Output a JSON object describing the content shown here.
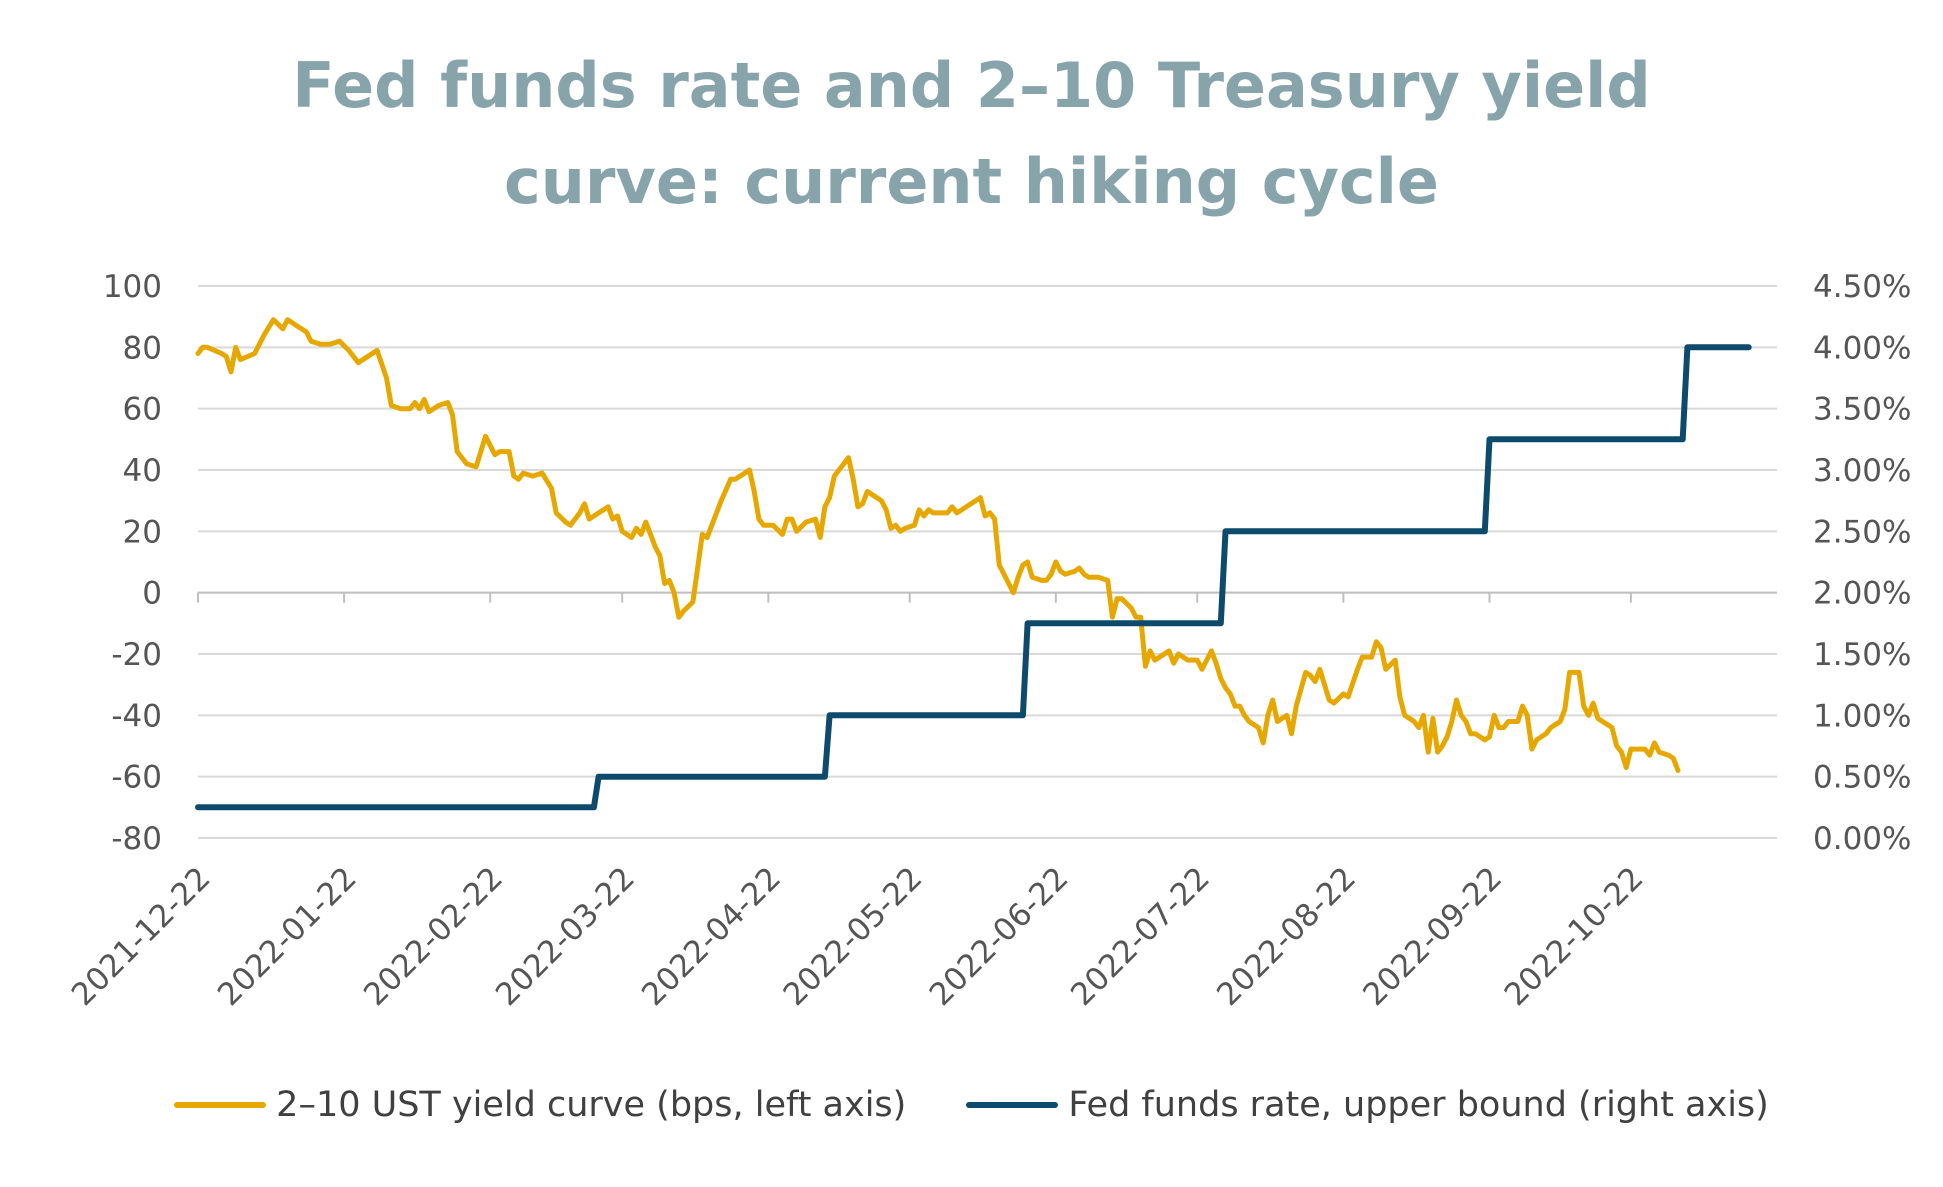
{
  "chart_data": {
    "type": "line",
    "title_lines": [
      "Fed funds rate and 2–10 Treasury yield",
      "curve: current hiking cycle"
    ],
    "x_ticks": [
      "2021-12-22",
      "2022-01-22",
      "2022-02-22",
      "2022-03-22",
      "2022-04-22",
      "2022-05-22",
      "2022-06-22",
      "2022-07-22",
      "2022-08-22",
      "2022-09-22",
      "2022-10-22"
    ],
    "x_range": [
      "2021-12-22",
      "2022-11-22"
    ],
    "y_left": {
      "ylim": [
        -80,
        100
      ],
      "ticks": [
        100,
        80,
        60,
        40,
        20,
        0,
        -20,
        -40,
        -60,
        -80
      ],
      "tick_labels": [
        "100",
        "80",
        "60",
        "40",
        "20",
        "0",
        "-20",
        "-40",
        "-60",
        "-80"
      ]
    },
    "y_right": {
      "ylim": [
        0,
        4.5
      ],
      "ticks": [
        4.5,
        4.0,
        3.5,
        3.0,
        2.5,
        2.0,
        1.5,
        1.0,
        0.5,
        0.0
      ],
      "tick_labels": [
        "4.50%",
        "4.00%",
        "3.50%",
        "3.00%",
        "2.50%",
        "2.00%",
        "1.50%",
        "1.00%",
        "0.50%",
        "0.00%"
      ]
    },
    "grid": true,
    "legend_position": "bottom",
    "series": [
      {
        "name": "2–10 UST yield curve (bps, left axis)",
        "axis": "left",
        "color": "#E6A800",
        "points": [
          [
            "2021-12-22",
            78
          ],
          [
            "2021-12-23",
            80
          ],
          [
            "2021-12-24",
            80
          ],
          [
            "2021-12-27",
            78
          ],
          [
            "2021-12-28",
            77
          ],
          [
            "2021-12-29",
            72
          ],
          [
            "2021-12-30",
            80
          ],
          [
            "2021-12-31",
            76
          ],
          [
            "2022-01-03",
            78
          ],
          [
            "2022-01-05",
            84
          ],
          [
            "2022-01-07",
            89
          ],
          [
            "2022-01-09",
            86
          ],
          [
            "2022-01-10",
            89
          ],
          [
            "2022-01-12",
            87
          ],
          [
            "2022-01-14",
            85
          ],
          [
            "2022-01-15",
            82
          ],
          [
            "2022-01-17",
            81
          ],
          [
            "2022-01-19",
            81
          ],
          [
            "2022-01-21",
            82
          ],
          [
            "2022-01-23",
            79
          ],
          [
            "2022-01-25",
            75
          ],
          [
            "2022-01-27",
            77
          ],
          [
            "2022-01-29",
            79
          ],
          [
            "2022-01-31",
            70
          ],
          [
            "2022-02-01",
            61
          ],
          [
            "2022-02-03",
            60
          ],
          [
            "2022-02-05",
            60
          ],
          [
            "2022-02-06",
            62
          ],
          [
            "2022-02-07",
            60
          ],
          [
            "2022-02-08",
            63
          ],
          [
            "2022-02-09",
            59
          ],
          [
            "2022-02-11",
            61
          ],
          [
            "2022-02-13",
            62
          ],
          [
            "2022-02-14",
            58
          ],
          [
            "2022-02-15",
            46
          ],
          [
            "2022-02-17",
            42
          ],
          [
            "2022-02-19",
            41
          ],
          [
            "2022-02-21",
            51
          ],
          [
            "2022-02-23",
            45
          ],
          [
            "2022-02-24",
            46
          ],
          [
            "2022-02-26",
            46
          ],
          [
            "2022-02-27",
            38
          ],
          [
            "2022-02-28",
            37
          ],
          [
            "2022-03-01",
            39
          ],
          [
            "2022-03-03",
            38
          ],
          [
            "2022-03-05",
            39
          ],
          [
            "2022-03-07",
            34
          ],
          [
            "2022-03-08",
            26
          ],
          [
            "2022-03-10",
            23
          ],
          [
            "2022-03-11",
            22
          ],
          [
            "2022-03-13",
            26
          ],
          [
            "2022-03-14",
            29
          ],
          [
            "2022-03-15",
            24
          ],
          [
            "2022-03-17",
            26
          ],
          [
            "2022-03-18",
            27
          ],
          [
            "2022-03-19",
            28
          ],
          [
            "2022-03-20",
            24
          ],
          [
            "2022-03-21",
            25
          ],
          [
            "2022-03-22",
            20
          ],
          [
            "2022-03-24",
            18
          ],
          [
            "2022-03-25",
            21
          ],
          [
            "2022-03-26",
            19
          ],
          [
            "2022-03-27",
            23
          ],
          [
            "2022-03-28",
            19
          ],
          [
            "2022-03-29",
            15
          ],
          [
            "2022-03-30",
            12
          ],
          [
            "2022-03-31",
            3
          ],
          [
            "2022-04-01",
            4
          ],
          [
            "2022-04-02",
            0
          ],
          [
            "2022-04-03",
            -8
          ],
          [
            "2022-04-04",
            -6
          ],
          [
            "2022-04-06",
            -3
          ],
          [
            "2022-04-07",
            8
          ],
          [
            "2022-04-08",
            19
          ],
          [
            "2022-04-09",
            18
          ],
          [
            "2022-04-10",
            22
          ],
          [
            "2022-04-12",
            30
          ],
          [
            "2022-04-14",
            37
          ],
          [
            "2022-04-15",
            37
          ],
          [
            "2022-04-17",
            39
          ],
          [
            "2022-04-18",
            40
          ],
          [
            "2022-04-19",
            33
          ],
          [
            "2022-04-20",
            24
          ],
          [
            "2022-04-21",
            22
          ],
          [
            "2022-04-23",
            22
          ],
          [
            "2022-04-25",
            19
          ],
          [
            "2022-04-26",
            24
          ],
          [
            "2022-04-27",
            24
          ],
          [
            "2022-04-28",
            20
          ],
          [
            "2022-04-30",
            23
          ],
          [
            "2022-05-02",
            24
          ],
          [
            "2022-05-03",
            18
          ],
          [
            "2022-05-04",
            28
          ],
          [
            "2022-05-05",
            31
          ],
          [
            "2022-05-06",
            38
          ],
          [
            "2022-05-07",
            40
          ],
          [
            "2022-05-09",
            44
          ],
          [
            "2022-05-10",
            37
          ],
          [
            "2022-05-11",
            28
          ],
          [
            "2022-05-12",
            29
          ],
          [
            "2022-05-13",
            33
          ],
          [
            "2022-05-14",
            32
          ],
          [
            "2022-05-16",
            30
          ],
          [
            "2022-05-17",
            27
          ],
          [
            "2022-05-18",
            21
          ],
          [
            "2022-05-19",
            22
          ],
          [
            "2022-05-20",
            20
          ],
          [
            "2022-05-21",
            21
          ],
          [
            "2022-05-23",
            22
          ],
          [
            "2022-05-24",
            27
          ],
          [
            "2022-05-25",
            25
          ],
          [
            "2022-05-26",
            27
          ],
          [
            "2022-05-27",
            26
          ],
          [
            "2022-05-29",
            26
          ],
          [
            "2022-05-30",
            26
          ],
          [
            "2022-05-31",
            28
          ],
          [
            "2022-06-01",
            26
          ],
          [
            "2022-06-03",
            28
          ],
          [
            "2022-06-05",
            30
          ],
          [
            "2022-06-06",
            31
          ],
          [
            "2022-06-07",
            25
          ],
          [
            "2022-06-08",
            26
          ],
          [
            "2022-06-09",
            24
          ],
          [
            "2022-06-10",
            9
          ],
          [
            "2022-06-11",
            6
          ],
          [
            "2022-06-12",
            3
          ],
          [
            "2022-06-13",
            0
          ],
          [
            "2022-06-14",
            5
          ],
          [
            "2022-06-15",
            9
          ],
          [
            "2022-06-16",
            10
          ],
          [
            "2022-06-17",
            5
          ],
          [
            "2022-06-19",
            4
          ],
          [
            "2022-06-20",
            4
          ],
          [
            "2022-06-21",
            6
          ],
          [
            "2022-06-22",
            10
          ],
          [
            "2022-06-23",
            7
          ],
          [
            "2022-06-24",
            6
          ],
          [
            "2022-06-26",
            7
          ],
          [
            "2022-06-27",
            8
          ],
          [
            "2022-06-28",
            6
          ],
          [
            "2022-06-29",
            5
          ],
          [
            "2022-07-01",
            5
          ],
          [
            "2022-07-03",
            4
          ],
          [
            "2022-07-04",
            -8
          ],
          [
            "2022-07-05",
            -2
          ],
          [
            "2022-07-06",
            -2
          ],
          [
            "2022-07-08",
            -5
          ],
          [
            "2022-07-09",
            -8
          ],
          [
            "2022-07-10",
            -8
          ],
          [
            "2022-07-11",
            -24
          ],
          [
            "2022-07-12",
            -19
          ],
          [
            "2022-07-13",
            -22
          ],
          [
            "2022-07-15",
            -20
          ],
          [
            "2022-07-16",
            -19
          ],
          [
            "2022-07-17",
            -23
          ],
          [
            "2022-07-18",
            -20
          ],
          [
            "2022-07-19",
            -21
          ],
          [
            "2022-07-20",
            -22
          ],
          [
            "2022-07-21",
            -22
          ],
          [
            "2022-07-22",
            -22
          ],
          [
            "2022-07-23",
            -25
          ],
          [
            "2022-07-24",
            -22
          ],
          [
            "2022-07-25",
            -19
          ],
          [
            "2022-07-26",
            -23
          ],
          [
            "2022-07-27",
            -28
          ],
          [
            "2022-07-28",
            -31
          ],
          [
            "2022-07-29",
            -33
          ],
          [
            "2022-07-30",
            -37
          ],
          [
            "2022-07-31",
            -37
          ],
          [
            "2022-08-01",
            -40
          ],
          [
            "2022-08-02",
            -42
          ],
          [
            "2022-08-04",
            -44
          ],
          [
            "2022-08-05",
            -49
          ],
          [
            "2022-08-06",
            -40
          ],
          [
            "2022-08-07",
            -35
          ],
          [
            "2022-08-08",
            -42
          ],
          [
            "2022-08-09",
            -41
          ],
          [
            "2022-08-10",
            -40
          ],
          [
            "2022-08-11",
            -46
          ],
          [
            "2022-08-12",
            -37
          ],
          [
            "2022-08-14",
            -26
          ],
          [
            "2022-08-15",
            -27
          ],
          [
            "2022-08-16",
            -29
          ],
          [
            "2022-08-17",
            -25
          ],
          [
            "2022-08-18",
            -30
          ],
          [
            "2022-08-19",
            -35
          ],
          [
            "2022-08-20",
            -36
          ],
          [
            "2022-08-22",
            -33
          ],
          [
            "2022-08-23",
            -34
          ],
          [
            "2022-08-25",
            -25
          ],
          [
            "2022-08-26",
            -21
          ],
          [
            "2022-08-28",
            -21
          ],
          [
            "2022-08-29",
            -16
          ],
          [
            "2022-08-30",
            -18
          ],
          [
            "2022-08-31",
            -25
          ],
          [
            "2022-09-02",
            -22
          ],
          [
            "2022-09-03",
            -34
          ],
          [
            "2022-09-04",
            -40
          ],
          [
            "2022-09-05",
            -41
          ],
          [
            "2022-09-06",
            -42
          ],
          [
            "2022-09-07",
            -44
          ],
          [
            "2022-09-08",
            -40
          ],
          [
            "2022-09-09",
            -52
          ],
          [
            "2022-09-10",
            -41
          ],
          [
            "2022-09-11",
            -52
          ],
          [
            "2022-09-12",
            -50
          ],
          [
            "2022-09-13",
            -47
          ],
          [
            "2022-09-14",
            -42
          ],
          [
            "2022-09-15",
            -35
          ],
          [
            "2022-09-16",
            -40
          ],
          [
            "2022-09-17",
            -42
          ],
          [
            "2022-09-18",
            -46
          ],
          [
            "2022-09-19",
            -46
          ],
          [
            "2022-09-20",
            -47
          ],
          [
            "2022-09-21",
            -48
          ],
          [
            "2022-09-22",
            -47
          ],
          [
            "2022-09-23",
            -40
          ],
          [
            "2022-09-24",
            -44
          ],
          [
            "2022-09-25",
            -44
          ],
          [
            "2022-09-26",
            -42
          ],
          [
            "2022-09-28",
            -42
          ],
          [
            "2022-09-29",
            -37
          ],
          [
            "2022-09-30",
            -40
          ],
          [
            "2022-10-01",
            -51
          ],
          [
            "2022-10-02",
            -48
          ],
          [
            "2022-10-04",
            -46
          ],
          [
            "2022-10-05",
            -44
          ],
          [
            "2022-10-06",
            -43
          ],
          [
            "2022-10-07",
            -42
          ],
          [
            "2022-10-08",
            -38
          ],
          [
            "2022-10-09",
            -26
          ],
          [
            "2022-10-11",
            -26
          ],
          [
            "2022-10-12",
            -37
          ],
          [
            "2022-10-13",
            -40
          ],
          [
            "2022-10-14",
            -36
          ],
          [
            "2022-10-15",
            -41
          ],
          [
            "2022-10-16",
            -42
          ],
          [
            "2022-10-17",
            -43
          ],
          [
            "2022-10-18",
            -44
          ],
          [
            "2022-10-19",
            -50
          ],
          [
            "2022-10-20",
            -52
          ],
          [
            "2022-10-21",
            -57
          ],
          [
            "2022-10-22",
            -51
          ],
          [
            "2022-10-24",
            -51
          ],
          [
            "2022-10-25",
            -51
          ],
          [
            "2022-10-26",
            -53
          ],
          [
            "2022-10-27",
            -49
          ],
          [
            "2022-10-28",
            -52
          ],
          [
            "2022-10-30",
            -53
          ],
          [
            "2022-10-31",
            -54
          ],
          [
            "2022-11-01",
            -58
          ]
        ]
      },
      {
        "name": "Fed funds rate, upper bound (right axis)",
        "axis": "right",
        "color": "#0D4A6B",
        "points": [
          [
            "2021-12-22",
            0.25
          ],
          [
            "2022-03-16",
            0.25
          ],
          [
            "2022-03-17",
            0.5
          ],
          [
            "2022-05-04",
            0.5
          ],
          [
            "2022-05-05",
            1.0
          ],
          [
            "2022-06-15",
            1.0
          ],
          [
            "2022-06-16",
            1.75
          ],
          [
            "2022-07-27",
            1.75
          ],
          [
            "2022-07-28",
            2.5
          ],
          [
            "2022-09-21",
            2.5
          ],
          [
            "2022-09-22",
            3.25
          ],
          [
            "2022-11-02",
            3.25
          ],
          [
            "2022-11-03",
            4.0
          ],
          [
            "2022-11-16",
            4.0
          ]
        ]
      }
    ]
  }
}
